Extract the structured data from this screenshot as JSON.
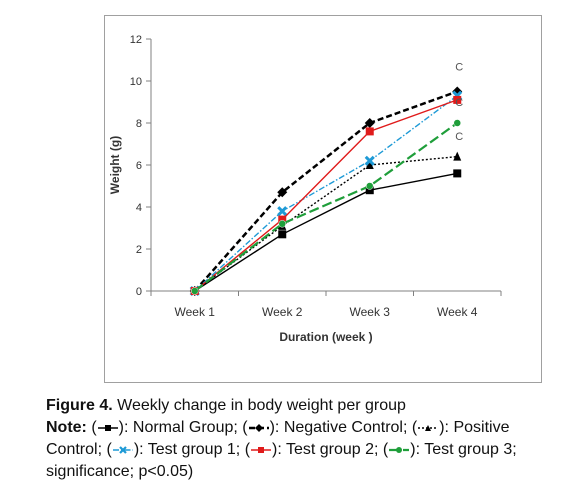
{
  "chart_data": {
    "type": "line",
    "categories": [
      "Week 1",
      "Week 2",
      "Week 3",
      "Week 4"
    ],
    "xlabel": "Duration (week )",
    "ylabel": "Weight (g)",
    "ylim": [
      0,
      12
    ],
    "yticks": [
      "0",
      "2",
      "4",
      "6",
      "8",
      "10",
      "12"
    ],
    "grid": false,
    "series": [
      {
        "name": "Normal Group",
        "values": [
          0,
          2.7,
          4.8,
          5.6
        ],
        "color": "#000000",
        "dash": "solid",
        "marker": "square"
      },
      {
        "name": "Negative Control",
        "values": [
          0,
          4.7,
          8.0,
          9.5
        ],
        "color": "#000000",
        "dash": "bold-dash",
        "marker": "diamond"
      },
      {
        "name": "Positive Control",
        "values": [
          0,
          3.1,
          6.0,
          6.4
        ],
        "color": "#000000",
        "dash": "dot",
        "marker": "triangle"
      },
      {
        "name": "Test group 1",
        "values": [
          0,
          3.8,
          6.2,
          9.3
        ],
        "color": "#1e9ad6",
        "dash": "dash-dot",
        "marker": "x"
      },
      {
        "name": "Test group 2",
        "values": [
          0,
          3.4,
          7.6,
          9.1
        ],
        "color": "#e01b1b",
        "dash": "solid",
        "marker": "square"
      },
      {
        "name": "Test group 3",
        "values": [
          0,
          3.2,
          5.0,
          8.0
        ],
        "color": "#1f9e3a",
        "dash": "long-dash",
        "marker": "circle"
      }
    ],
    "annotations": [
      {
        "text": "C",
        "x": "Week 4",
        "y": 10.5
      },
      {
        "text": "C",
        "x": "Week 4",
        "y": 8.8
      },
      {
        "text": "C",
        "x": "Week 4",
        "y": 7.2
      }
    ]
  },
  "caption": {
    "figure_label": "Figure 4.",
    "title": "Weekly change in body weight per group",
    "note_label": "Note:",
    "legend_items": [
      {
        "text": "Normal Group;",
        "series": 0
      },
      {
        "text": "Negative Control;",
        "series": 1
      },
      {
        "text": "Positive Control;",
        "series": 2
      },
      {
        "text": "Test group 1;",
        "series": 3
      },
      {
        "text": "Test group 2;",
        "series": 4
      },
      {
        "text": "Test group 3;",
        "series": 5
      }
    ],
    "significance": "significance; p<0.05)"
  }
}
